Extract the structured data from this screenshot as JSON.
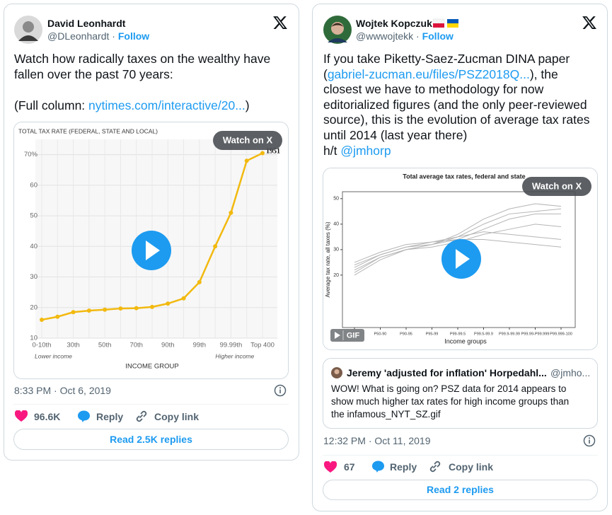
{
  "tweets": [
    {
      "author": {
        "name": "David Leonhardt",
        "handle": "@DLeonhardt",
        "separator": "·",
        "follow": "Follow"
      },
      "body": [
        [
          [
            {
              "text": "Watch how radically taxes on the wealthy have"
            }
          ],
          [
            {
              "text": "fallen over the past 70 years:"
            }
          ]
        ],
        [
          [
            {
              "text": "(Full column: "
            },
            {
              "link": "nytimes.com/interactive/20..."
            },
            {
              "text": ")"
            }
          ]
        ]
      ],
      "media": {
        "watch": "Watch on X",
        "chart": {
          "type": "line",
          "title": "TOTAL TAX RATE (FEDERAL, STATE AND LOCAL)",
          "categories": [
            "0-10th",
            null,
            "30th",
            null,
            "50th",
            null,
            "70th",
            null,
            "90th",
            null,
            "99th",
            null,
            "99.99th",
            null,
            "Top 400"
          ],
          "values": [
            16,
            17,
            18.5,
            19,
            19.3,
            19.7,
            19.8,
            20.2,
            21.3,
            23,
            28.3,
            40,
            51,
            68,
            70.5
          ],
          "color": "#f2b90f",
          "ylim": [
            10,
            75
          ],
          "yticks": [
            10,
            20,
            30,
            40,
            50,
            60,
            {
              "value": 70,
              "label": "70%"
            }
          ],
          "grid": true,
          "annotation": "1951",
          "x_notes": [
            "Lower income",
            "Higher income"
          ],
          "xlabel": "INCOME GROUP"
        }
      },
      "timestamp": "8:33 PM · Oct 6, 2019",
      "likes": "96.6K",
      "reply": "Reply",
      "copy": "Copy link",
      "read_replies": "Read 2.5K replies"
    },
    {
      "author": {
        "name": "Wojtek Kopczuk",
        "handle": "@wwwojtekk",
        "separator": "·",
        "follow": "Follow"
      },
      "body": [
        [
          [
            {
              "text": "If you take Piketty-Saez-Zucman DINA paper"
            }
          ],
          [
            {
              "text": "("
            },
            {
              "link": "gabriel-zucman.eu/files/PSZ2018Q..."
            },
            {
              "text": "), the"
            }
          ],
          [
            {
              "text": "closest we have to methodology for now"
            }
          ],
          [
            {
              "text": "editorialized figures (and the only peer-reviewed"
            }
          ],
          [
            {
              "text": "source), this is the evolution of average tax rates"
            }
          ],
          [
            {
              "text": "until 2014 (last year there)"
            }
          ]
        ],
        [
          [
            {
              "text": "h/t "
            },
            {
              "link": "@jmhorp"
            }
          ]
        ]
      ],
      "media": {
        "watch": "Watch on X",
        "gif": "GIF",
        "chart": {
          "type": "line",
          "title": "Total average tax rates, federal and state",
          "ylabel": "Average tax rate, all taxes (%)",
          "xlabel": "Income groups",
          "categories": [
            null,
            "P50-90",
            "P90-95",
            "P95-99",
            "P99-99.5",
            "P99.5-99.9",
            "P99.9-99.99",
            "P99.99-P99.999",
            "P99.999-100"
          ],
          "ylim": [
            0,
            53
          ],
          "yticks": [
            20,
            30,
            40,
            50
          ],
          "color": "#b5b5b5",
          "lines": [
            [
              22,
              27,
              30,
              32,
              36,
              42,
              46,
              48,
              47
            ],
            [
              24,
              28,
              31,
              32,
              34,
              38,
              42,
              44,
              44
            ],
            [
              20,
              26,
              30,
              31,
              33,
              36,
              38,
              40,
              39
            ],
            [
              23,
              28,
              31,
              33,
              35,
              37,
              36,
              35,
              34
            ],
            [
              25,
              29,
              32,
              33,
              34,
              34,
              33,
              32,
              31
            ],
            [
              21,
              27,
              30,
              32,
              35,
              40,
              44,
              45,
              46
            ]
          ]
        }
      },
      "quote": {
        "name": "Jeremy 'adjusted for inflation' Horpedahl...",
        "handle": "@jmho...",
        "lines": [
          "WOW! What is going on? PSZ data for 2014 appears to",
          "show much higher tax rates for high income groups than",
          "the infamous_NYT_SZ.gif"
        ]
      },
      "timestamp": "12:32 PM · Oct 11, 2019",
      "likes": "67",
      "reply": "Reply",
      "copy": "Copy link",
      "read_replies": "Read 2 replies"
    }
  ]
}
